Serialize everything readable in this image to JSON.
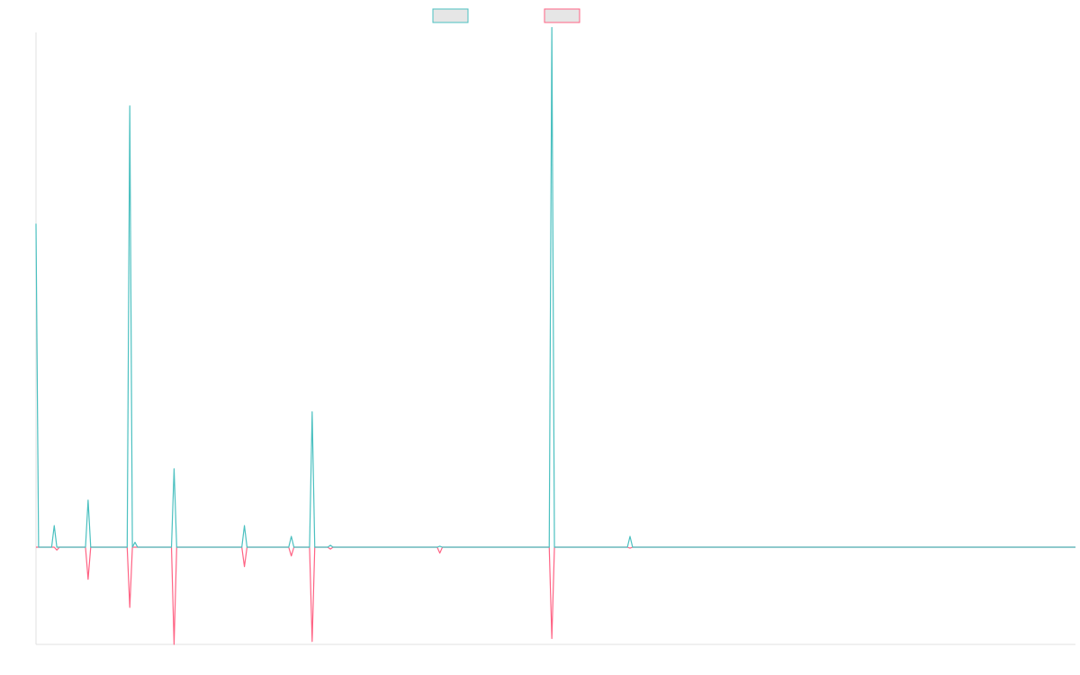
{
  "chart_data": {
    "type": "line",
    "title": "",
    "xlabel": "",
    "ylabel": "",
    "legend": {
      "placement": "top-center",
      "labels_visible": false
    },
    "grid": false,
    "x_count": 400,
    "ylim": [
      -100,
      525
    ],
    "colors": {
      "series_a": "#4bc0c0",
      "series_b": "#ff6384",
      "legend_fill": "#e6e6e6",
      "axis": "#e1e1e1"
    },
    "series": [
      {
        "key": "series_a",
        "spikes": [
          {
            "x": 0,
            "y": 330
          },
          {
            "x": 1,
            "y": 0
          },
          {
            "x": 7,
            "y": 22
          },
          {
            "x": 20,
            "y": 48
          },
          {
            "x": 36,
            "y": 450
          },
          {
            "x": 38,
            "y": 5
          },
          {
            "x": 53,
            "y": 80
          },
          {
            "x": 80,
            "y": 22
          },
          {
            "x": 98,
            "y": 11
          },
          {
            "x": 106,
            "y": 138
          },
          {
            "x": 113,
            "y": 2
          },
          {
            "x": 155,
            "y": 1
          },
          {
            "x": 198,
            "y": 530
          },
          {
            "x": 228,
            "y": 11
          }
        ]
      },
      {
        "key": "series_b",
        "spikes": [
          {
            "x": 8,
            "y": -3
          },
          {
            "x": 20,
            "y": -33
          },
          {
            "x": 36,
            "y": -62
          },
          {
            "x": 53,
            "y": -100
          },
          {
            "x": 80,
            "y": -20
          },
          {
            "x": 98,
            "y": -9
          },
          {
            "x": 106,
            "y": -97
          },
          {
            "x": 113,
            "y": -2
          },
          {
            "x": 155,
            "y": -6
          },
          {
            "x": 198,
            "y": -94
          },
          {
            "x": 228,
            "y": -1
          }
        ]
      }
    ]
  }
}
